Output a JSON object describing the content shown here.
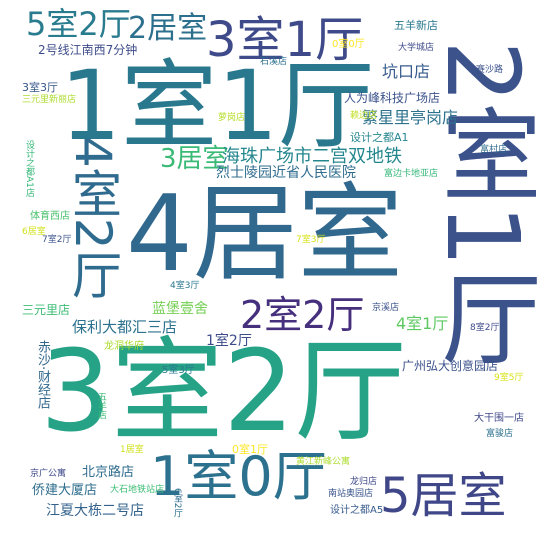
{
  "words": [
    {
      "text": "4居室",
      "color": "#31688e"
    },
    {
      "text": "3室2厅",
      "color": "#26a387"
    },
    {
      "text": "1室1厅",
      "color": "#2a788e"
    },
    {
      "text": "2室1厅",
      "color": "#3b528b"
    },
    {
      "text": "4室2厅",
      "color": "#2f6b8e"
    },
    {
      "text": "3室1厅",
      "color": "#3e4a89"
    },
    {
      "text": "1室0厅",
      "color": "#2c718e"
    },
    {
      "text": "5居室",
      "color": "#3f4788"
    },
    {
      "text": "2室2厅",
      "color": "#46307e"
    },
    {
      "text": "5室2厅",
      "color": "#297b8e"
    },
    {
      "text": "2居室",
      "color": "#2d708e"
    },
    {
      "text": "3居室",
      "color": "#3aba76"
    },
    {
      "text": "海珠广场市二宫双地铁",
      "color": "#24878e"
    },
    {
      "text": "繁星里亭岗店",
      "color": "#2c728e"
    },
    {
      "text": "坑口店",
      "color": "#375b8d"
    },
    {
      "text": "保利大都汇三店",
      "color": "#2c728e"
    },
    {
      "text": "烈士陵园近省人民医院",
      "color": "#2f6c8e"
    },
    {
      "text": "人为峰科技广场店",
      "color": "#3b528b"
    },
    {
      "text": "4室1厅",
      "color": "#5ec962"
    },
    {
      "text": "蓝堡壹舍",
      "color": "#75d054"
    },
    {
      "text": "1室2厅",
      "color": "#3d4d8a"
    },
    {
      "text": "广州弘大创意园店",
      "color": "#3b528b"
    },
    {
      "text": "北京路店",
      "color": "#2f6c8e"
    },
    {
      "text": "侨建大厦店",
      "color": "#2e6e8e"
    },
    {
      "text": "江夏大栋二号店",
      "color": "#33638d"
    },
    {
      "text": "2号线江南西7分钟",
      "color": "#3e4c8a"
    },
    {
      "text": "五羊新店",
      "color": "#2a788e"
    },
    {
      "text": "3室3厅",
      "color": "#38598c"
    },
    {
      "text": "三元里店",
      "color": "#3dbc74"
    },
    {
      "text": "设计之都A1",
      "color": "#24878e"
    },
    {
      "text": "赤沙·财经店",
      "color": "#31688e"
    },
    {
      "text": "体育西店",
      "color": "#4ac16d"
    },
    {
      "text": "5室3厅",
      "color": "#2a788e"
    },
    {
      "text": "龙洞华府",
      "color": "#addc30"
    },
    {
      "text": "大干围一店",
      "color": "#3f4788"
    },
    {
      "text": "设计之都A5",
      "color": "#375b8d"
    },
    {
      "text": "南站奥园店",
      "color": "#39558c"
    },
    {
      "text": "京广公寓",
      "color": "#3e4989"
    },
    {
      "text": "大石地铁站店",
      "color": "#3dbc74"
    },
    {
      "text": "0室1厅",
      "color": "#fde725"
    },
    {
      "text": "0室0厅",
      "color": "#fde725"
    },
    {
      "text": "1居室",
      "color": "#d0e11c"
    },
    {
      "text": "6居室",
      "color": "#d0e11c"
    },
    {
      "text": "7室2厅",
      "color": "#3b528b"
    },
    {
      "text": "7室3厅",
      "color": "#d8e219"
    },
    {
      "text": "8室2厅",
      "color": "#3e4a89"
    },
    {
      "text": "9室5厅",
      "color": "#d8e219"
    },
    {
      "text": "4室3厅",
      "color": "#2a788e"
    },
    {
      "text": "6室2厅",
      "color": "#2e6e8e"
    },
    {
      "text": "大学城店",
      "color": "#3e4c8a"
    },
    {
      "text": "赛沙路",
      "color": "#3b528b"
    },
    {
      "text": "石溪店",
      "color": "#2c718e"
    },
    {
      "text": "三元里新丽店",
      "color": "#addc30"
    },
    {
      "text": "萝岗店",
      "color": "#b5de2b"
    },
    {
      "text": "赖边店",
      "color": "#c2df23"
    },
    {
      "text": "富村店",
      "color": "#2f6c8e"
    },
    {
      "text": "富边卡地亚店",
      "color": "#35b779"
    },
    {
      "text": "设计之都A1店",
      "color": "#35b779"
    },
    {
      "text": "京溪店",
      "color": "#3b528b"
    },
    {
      "text": "龙归店",
      "color": "#3e4989"
    },
    {
      "text": "富骏店",
      "color": "#2c718e"
    },
    {
      "text": "黄江新峰公寓",
      "color": "#addc30"
    },
    {
      "text": "五羊店",
      "color": "#3aba76"
    }
  ]
}
